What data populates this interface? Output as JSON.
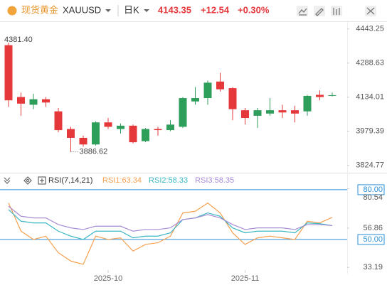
{
  "header": {
    "name": "现货黄金",
    "symbol": "XAUUSD",
    "period": "日K",
    "price": "4143.35",
    "change": "+12.54",
    "percent": "+0.30%"
  },
  "chart_data": [
    {
      "type": "candlestick",
      "categories": [
        null,
        null,
        null,
        null,
        null,
        null,
        null,
        null,
        "2025-10",
        null,
        null,
        null,
        null,
        null,
        null,
        null,
        null,
        null,
        null,
        "2025-11",
        null,
        null,
        null,
        null,
        null,
        null,
        null
      ],
      "open": [
        4370,
        4135,
        4100,
        4125,
        4070,
        3990,
        3950,
        3920,
        4020,
        3990,
        4005,
        3935,
        3990,
        3985,
        4000,
        4115,
        4130,
        4205,
        4175,
        4075,
        4050,
        4060,
        4075,
        4075,
        4070,
        4145,
        4140
      ],
      "high": [
        4381.4,
        4155,
        4150,
        4135,
        4085,
        4000,
        3960,
        4025,
        4040,
        4015,
        4010,
        3995,
        4000,
        4030,
        4135,
        4180,
        4210,
        4245,
        4180,
        4085,
        4085,
        4130,
        4100,
        4095,
        4145,
        4165,
        4155
      ],
      "low": [
        4090,
        4050,
        4080,
        4090,
        3975,
        3886.62,
        3910,
        3915,
        3990,
        3970,
        3925,
        3930,
        3960,
        3980,
        3995,
        4100,
        4100,
        4160,
        4030,
        4010,
        3995,
        4050,
        4040,
        4020,
        4050,
        4120,
        4138
      ],
      "close": [
        4120,
        4105,
        4125,
        4110,
        3985,
        3950,
        3920,
        4020,
        4000,
        4005,
        3930,
        3990,
        3985,
        4010,
        4130,
        4130,
        4200,
        4170,
        4080,
        4040,
        4075,
        4075,
        4065,
        4060,
        4140,
        4135,
        4143.35
      ],
      "up_color": "#2e9e5b",
      "down_color": "#e5383b",
      "ylim": [
        3792,
        4478
      ],
      "yticks": [
        {
          "value": 4443.25,
          "label": "4443.25"
        },
        {
          "value": 4288.63,
          "label": "4288.63"
        },
        {
          "value": 4134.01,
          "label": "4134.01"
        },
        {
          "value": 3979.39,
          "label": "3979.39"
        },
        {
          "value": 3824.77,
          "label": "3824.77"
        }
      ],
      "annotations": [
        {
          "value": 4381.4,
          "label": "4381.40"
        },
        {
          "value": 3886.62,
          "label": "3886.62"
        }
      ]
    },
    {
      "type": "line",
      "title": "RSI(7,14,21)",
      "series": [
        {
          "name": "RSI1:63.34",
          "color": "#f5a050",
          "values": [
            72,
            55,
            50,
            52,
            42,
            37,
            35,
            52,
            50,
            51,
            43,
            47,
            48,
            52,
            66,
            67,
            72,
            66,
            54,
            47,
            51,
            52,
            51,
            50,
            61,
            60,
            63.34
          ]
        },
        {
          "name": "RSI2:58.33",
          "color": "#3bb8c4",
          "values": [
            68,
            61,
            60,
            60,
            55,
            52,
            50,
            55,
            55,
            55,
            51,
            52,
            52,
            54,
            62,
            63,
            66,
            64,
            57,
            54,
            55,
            55,
            55,
            54,
            60,
            59.5,
            58.33
          ]
        },
        {
          "name": "RSI3:58.35",
          "color": "#a78bd4",
          "values": [
            70,
            64,
            63,
            63,
            59,
            57,
            56,
            58,
            58,
            58,
            55,
            56,
            56,
            57,
            62,
            63,
            65,
            63,
            59,
            56,
            57,
            57,
            57,
            56,
            59,
            59,
            58.35
          ]
        }
      ],
      "ylim": [
        29.4,
        89.4
      ],
      "levels": [
        {
          "value": 80,
          "label": "80.00"
        },
        {
          "value": 50,
          "label": "50.00"
        }
      ],
      "level_color": "#2a8fd8",
      "yticks": [
        {
          "value": 80.54,
          "label": "80.54"
        },
        {
          "value": 56.86,
          "label": "56.86"
        },
        {
          "value": 33.19,
          "label": "33.19"
        }
      ]
    }
  ]
}
